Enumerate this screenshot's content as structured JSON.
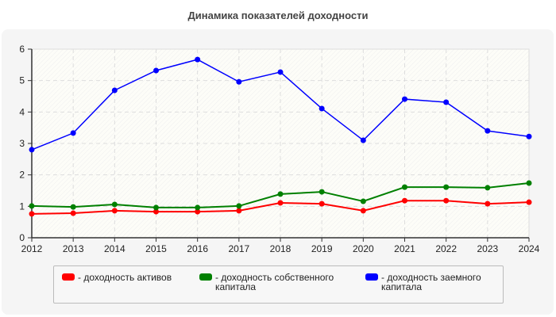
{
  "chart_data": {
    "type": "line",
    "title": "Динамика показателей доходности",
    "x": [
      "2012",
      "2013",
      "2014",
      "2015",
      "2016",
      "2017",
      "2018",
      "2019",
      "2020",
      "2021",
      "2022",
      "2023",
      "2024"
    ],
    "ylim": [
      0,
      6
    ],
    "yticks": [
      "0",
      "1",
      "2",
      "3",
      "4",
      "5",
      "6"
    ],
    "grid": true,
    "legend_position": "bottom",
    "series": [
      {
        "name": "- доходность активов",
        "color": "#ff0000",
        "values": [
          0.76,
          0.78,
          0.86,
          0.83,
          0.83,
          0.86,
          1.11,
          1.08,
          0.86,
          1.18,
          1.18,
          1.08,
          1.13
        ]
      },
      {
        "name": "- доходность собственного капитала",
        "color": "#008000",
        "values": [
          1.01,
          0.98,
          1.06,
          0.96,
          0.96,
          1.01,
          1.39,
          1.46,
          1.16,
          1.61,
          1.61,
          1.59,
          1.74
        ]
      },
      {
        "name": "- доходность заемного капитала",
        "color": "#0000ff",
        "values": [
          2.8,
          3.33,
          4.69,
          5.32,
          5.67,
          4.96,
          5.27,
          4.11,
          3.1,
          4.41,
          4.31,
          3.4,
          3.22
        ]
      }
    ]
  }
}
